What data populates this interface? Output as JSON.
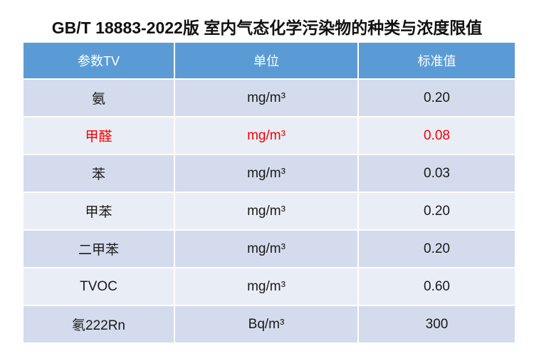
{
  "chart_data": {
    "type": "table",
    "title": "GB/T 18883-2022版 室内气态化学污染物的种类与浓度限值",
    "columns": [
      "参数TV",
      "单位",
      "标准值"
    ],
    "rows": [
      [
        "氨",
        "mg/m³",
        "0.20"
      ],
      [
        "甲醛",
        "mg/m³",
        "0.08"
      ],
      [
        "苯",
        "mg/m³",
        "0.03"
      ],
      [
        "甲苯",
        "mg/m³",
        "0.20"
      ],
      [
        "二甲苯",
        "mg/m³",
        "0.20"
      ],
      [
        "TVOC",
        "mg/m³",
        "0.60"
      ],
      [
        "氡222Rn",
        "Bq/m³",
        "300"
      ]
    ],
    "highlight_rows": [
      1
    ],
    "layout": "header row blue, data rows alternate dark/light periwinkle, all cells center-aligned"
  },
  "colors": {
    "header_bg": "#5B9BD5",
    "header_text": "#FFFFFF",
    "row_dark_bg": "#D3DBED",
    "row_light_bg": "#E9EDF6",
    "body_text": "#1A1A1A",
    "highlight_text": "#F40000",
    "page_bg": "#FFFFFF"
  }
}
